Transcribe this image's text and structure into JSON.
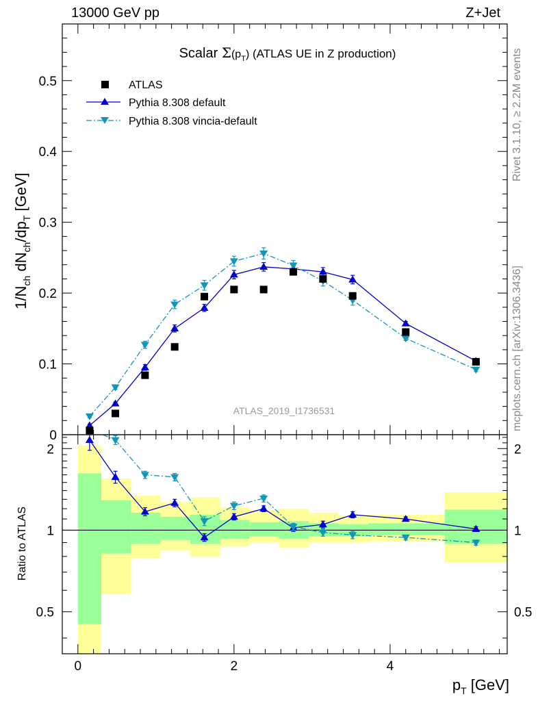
{
  "header": {
    "left": "13000 GeV pp",
    "right": "Z+Jet"
  },
  "side_labels": {
    "rivet": "Rivet 3.1.10, ≥ 2.2M events",
    "mcplots": "mcplots.cern.ch [arXiv:1306.3436]"
  },
  "watermark": "ATLAS_2019_I1736531",
  "colors": {
    "atlas": "#000000",
    "pythia_default": "#0000cc",
    "pythia_vincia": "#1196b8",
    "band_outer": "#ffff99",
    "band_inner": "#99ff99"
  },
  "chart_data": [
    {
      "type": "scatter",
      "title": "Scalar Σ(p_T) (ATLAS UE in Z production)",
      "ylabel": "1/N_ch dN_ch/dp_T [GeV]",
      "xlim": [
        -0.2,
        5.5
      ],
      "ylim": [
        0,
        0.58
      ],
      "yticks": [
        0,
        0.1,
        0.2,
        0.3,
        0.4,
        0.5
      ],
      "yticklabels": [
        "0",
        "0.1",
        "0.2",
        "0.3",
        "0.4",
        "0.5"
      ],
      "legend_position": "top-left",
      "series": [
        {
          "name": "ATLAS",
          "marker": "square",
          "x": [
            0.15,
            0.48,
            0.86,
            1.24,
            1.62,
            2.0,
            2.38,
            2.76,
            3.14,
            3.52,
            4.2,
            5.1
          ],
          "values": [
            0.006,
            0.03,
            0.084,
            0.124,
            0.195,
            0.205,
            0.205,
            0.23,
            0.22,
            0.196,
            0.145,
            0.103
          ]
        },
        {
          "name": "Pythia 8.308 default",
          "marker": "triangle-up",
          "x": [
            0.15,
            0.48,
            0.86,
            1.24,
            1.62,
            2.0,
            2.38,
            2.76,
            3.14,
            3.52,
            4.2,
            5.1
          ],
          "values": [
            0.013,
            0.044,
            0.095,
            0.15,
            0.179,
            0.226,
            0.237,
            0.234,
            0.23,
            0.219,
            0.157,
            0.104
          ],
          "errors": [
            0.002,
            0.002,
            0.004,
            0.005,
            0.005,
            0.006,
            0.006,
            0.006,
            0.006,
            0.006,
            0.003,
            0.003
          ]
        },
        {
          "name": "Pythia 8.308 vincia-default",
          "marker": "triangle-down",
          "x": [
            0.15,
            0.48,
            0.86,
            1.24,
            1.62,
            2.0,
            2.38,
            2.76,
            3.14,
            3.52,
            4.2,
            5.1
          ],
          "values": [
            0.026,
            0.067,
            0.127,
            0.184,
            0.211,
            0.245,
            0.256,
            0.239,
            0.217,
            0.19,
            0.136,
            0.092
          ],
          "errors": [
            0.002,
            0.003,
            0.005,
            0.006,
            0.007,
            0.007,
            0.008,
            0.007,
            0.007,
            0.007,
            0.003,
            0.003
          ]
        }
      ]
    },
    {
      "type": "scatter",
      "xlabel": "p_T [GeV]",
      "ylabel": "Ratio to ATLAS",
      "xlim": [
        -0.2,
        5.5
      ],
      "ylim": [
        0.35,
        2.25
      ],
      "yticks": [
        0.5,
        1,
        2
      ],
      "yticklabels": [
        "0.5",
        "1",
        "2"
      ],
      "xticks": [
        0,
        2,
        4
      ],
      "xticklabels": [
        "0",
        "2",
        "4"
      ],
      "reference_line": 1,
      "uncertainty_bands": {
        "bin_edges": [
          0.0,
          0.3,
          0.68,
          1.06,
          1.44,
          1.82,
          2.2,
          2.58,
          2.96,
          3.34,
          3.72,
          4.7,
          5.5
        ],
        "outer_low": [
          0.0,
          0.58,
          0.79,
          0.84,
          0.8,
          0.87,
          0.9,
          0.86,
          0.9,
          0.9,
          0.91,
          0.76
        ],
        "outer_high": [
          2.05,
          1.55,
          1.34,
          1.27,
          1.32,
          1.21,
          1.18,
          1.2,
          1.16,
          1.13,
          1.14,
          1.38
        ],
        "inner_low": [
          0.45,
          0.82,
          0.89,
          0.92,
          0.89,
          0.93,
          0.95,
          0.93,
          0.95,
          0.95,
          0.96,
          0.89
        ],
        "inner_high": [
          1.62,
          1.29,
          1.16,
          1.12,
          1.14,
          1.09,
          1.07,
          1.08,
          1.06,
          1.05,
          1.06,
          1.19
        ]
      },
      "series": [
        {
          "name": "Pythia 8.308 default",
          "marker": "triangle-up",
          "x": [
            0.15,
            0.48,
            0.86,
            1.24,
            1.62,
            2.0,
            2.38,
            2.76,
            3.14,
            3.52,
            4.2,
            5.1
          ],
          "values": [
            2.15,
            1.57,
            1.17,
            1.26,
            0.94,
            1.12,
            1.2,
            1.02,
            1.05,
            1.14,
            1.1,
            1.01
          ],
          "errors": [
            0.18,
            0.08,
            0.04,
            0.04,
            0.03,
            0.03,
            0.03,
            0.03,
            0.03,
            0.03,
            0.02,
            0.02
          ]
        },
        {
          "name": "Pythia 8.308 vincia-default",
          "marker": "triangle-down",
          "x": [
            0.48,
            0.86,
            1.24,
            1.62,
            2.0,
            2.38,
            2.76,
            3.14,
            3.52,
            4.2,
            5.1
          ],
          "values": [
            2.15,
            1.6,
            1.57,
            1.08,
            1.23,
            1.31,
            1.03,
            0.98,
            0.96,
            0.94,
            0.9
          ],
          "errors": [
            0.08,
            0.05,
            0.05,
            0.04,
            0.04,
            0.04,
            0.03,
            0.03,
            0.03,
            0.02,
            0.02
          ]
        }
      ]
    }
  ]
}
